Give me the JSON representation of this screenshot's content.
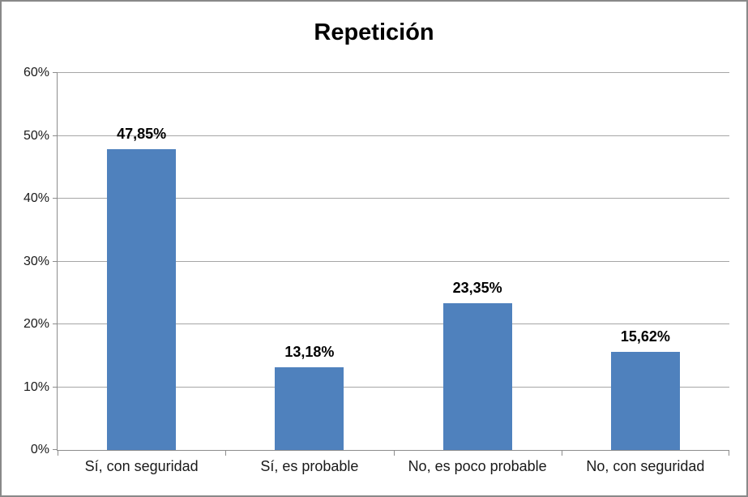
{
  "chart_data": {
    "type": "bar",
    "title": "Repetición",
    "categories": [
      "Sí, con seguridad",
      "Sí, es probable",
      "No, es poco probable",
      "No, con seguridad"
    ],
    "values": [
      47.85,
      13.18,
      23.35,
      15.62
    ],
    "data_labels": [
      "47,85%",
      "13,18%",
      "23,35%",
      "15,62%"
    ],
    "y_ticks": [
      "0%",
      "10%",
      "20%",
      "30%",
      "40%",
      "50%",
      "60%"
    ],
    "ylim": [
      0,
      60
    ],
    "xlabel": "",
    "ylabel": "",
    "grid": true,
    "legend": false,
    "bar_color": "#4F81BD",
    "gridline_color": "#A6A6A6",
    "axis_color": "#8C8C8C",
    "frame_border_color": "#898989"
  }
}
